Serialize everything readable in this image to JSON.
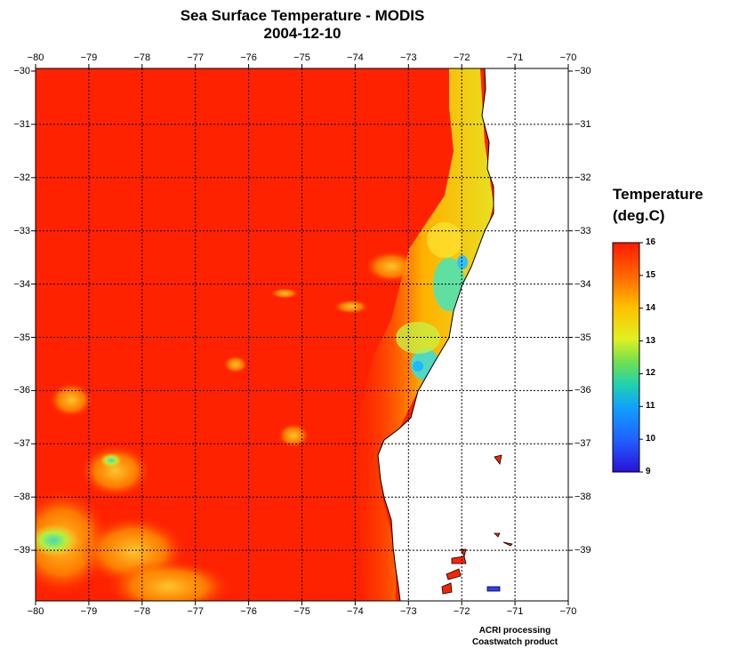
{
  "title_line1": "Sea Surface Temperature - MODIS",
  "title_line2": "2004-12-10",
  "x_ticks": [
    "−80",
    "−79",
    "−78",
    "−77",
    "−76",
    "−75",
    "−74",
    "−73",
    "−72",
    "−71",
    "−70"
  ],
  "y_ticks": [
    "−30",
    "−31",
    "−32",
    "−33",
    "−34",
    "−35",
    "−36",
    "−37",
    "−38",
    "−39"
  ],
  "colorbar": {
    "title_line1": "Temperature",
    "title_line2": "(deg.C)",
    "labels": [
      "16",
      "15",
      "14",
      "13",
      "12",
      "11",
      "10",
      "9"
    ],
    "min": 9,
    "max": 16
  },
  "credit_line1": "ACRI processing",
  "credit_line2": "Coastwatch product",
  "colors": {
    "ocean_warm": "#ff2200",
    "land": "#ffffff",
    "cold": "#2a40ff"
  }
}
